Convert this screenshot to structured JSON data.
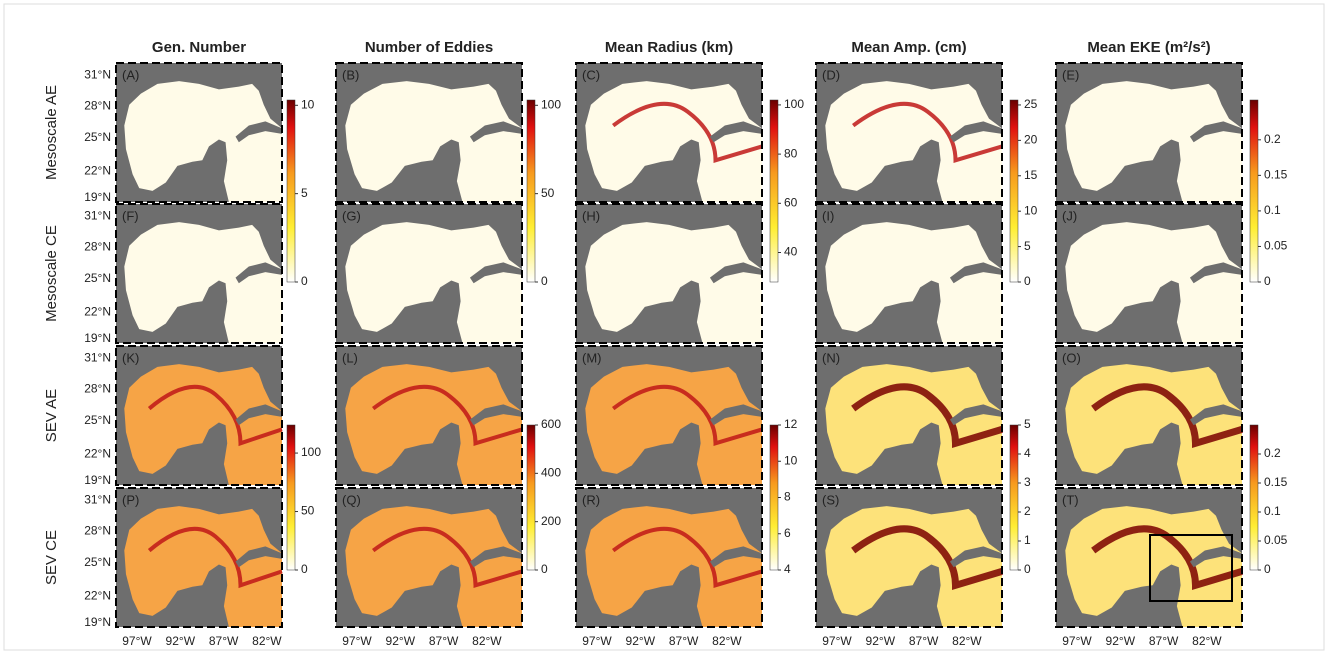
{
  "figure": {
    "columns": [
      "Gen. Number",
      "Number of Eddies",
      "Mean Radius (km)",
      "Mean Amp. (cm)",
      "Mean EKE (m²/s²)"
    ],
    "rows": [
      "Mesoscale AE",
      "Mesoscale CE",
      "SEV AE",
      "SEV CE"
    ],
    "panels": [
      "(A)",
      "(B)",
      "(C)",
      "(D)",
      "(E)",
      "(F)",
      "(G)",
      "(H)",
      "(I)",
      "(J)",
      "(K)",
      "(L)",
      "(M)",
      "(N)",
      "(O)",
      "(P)",
      "(Q)",
      "(R)",
      "(S)",
      "(T)"
    ],
    "yticks": [
      "31°N",
      "28°N",
      "25°N",
      "22°N",
      "19°N"
    ],
    "xticks": [
      "97°W",
      "92°W",
      "87°W",
      "82°W"
    ],
    "colorbars": [
      {
        "lim": [
          0,
          10.3
        ],
        "ticks": [
          0,
          5,
          10
        ]
      },
      {
        "lim": [
          0,
          103
        ],
        "ticks": [
          0,
          50,
          100
        ]
      },
      {
        "lim": [
          28,
          102
        ],
        "ticks": [
          40,
          60,
          80,
          100
        ]
      },
      {
        "lim": [
          0,
          25.7
        ],
        "ticks": [
          0,
          5,
          10,
          15,
          20,
          25
        ]
      },
      {
        "lim": [
          0,
          0.256
        ],
        "ticks": [
          0,
          0.05,
          0.1,
          0.15,
          0.2
        ]
      },
      {
        "lim": [
          0,
          124
        ],
        "ticks": [
          0,
          50,
          100
        ]
      },
      {
        "lim": [
          0,
          600
        ],
        "ticks": [
          0,
          200,
          400,
          600
        ]
      },
      {
        "lim": [
          4,
          12
        ],
        "ticks": [
          4,
          6,
          8,
          10,
          12
        ]
      },
      {
        "lim": [
          0,
          5
        ],
        "ticks": [
          0,
          1,
          2,
          3,
          4,
          5
        ]
      },
      {
        "lim": [
          0,
          0.25
        ],
        "ticks": [
          0,
          0.05,
          0.1,
          0.15,
          0.2
        ]
      }
    ]
  }
}
